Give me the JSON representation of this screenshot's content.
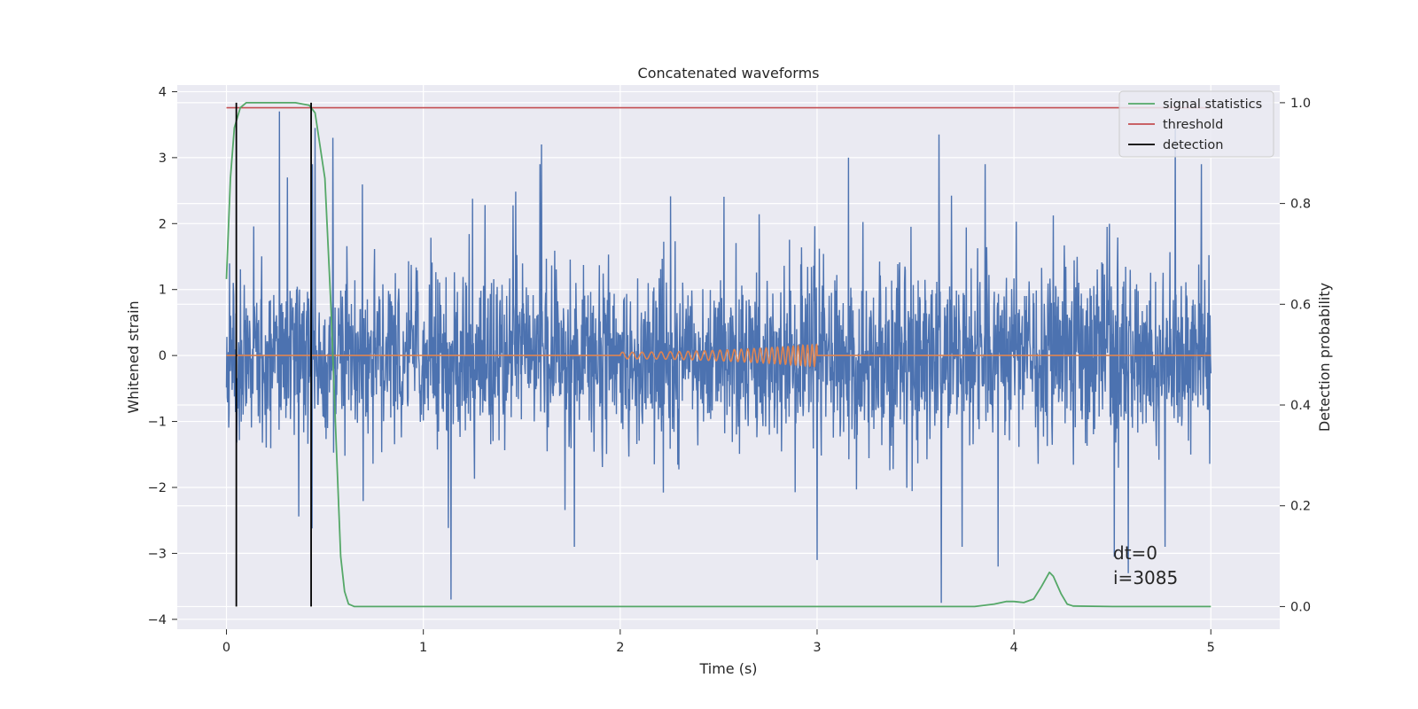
{
  "chart_data": {
    "type": "line",
    "title": "Concatenated waveforms",
    "xlabel": "Time (s)",
    "ylabel": "Whitened strain",
    "y2label": "Detection probability",
    "xlim": [
      -0.25,
      5.35
    ],
    "ylim": [
      -4.15,
      4.1
    ],
    "y2lim": [
      -0.045,
      1.035
    ],
    "xticks": [
      0,
      1,
      2,
      3,
      4,
      5
    ],
    "yticks": [
      -4,
      -3,
      -2,
      -1,
      0,
      1,
      2,
      3,
      4
    ],
    "y2ticks": [
      0.0,
      0.2,
      0.4,
      0.6,
      0.8,
      1.0
    ],
    "y2ticklabels": [
      "0.0",
      "0.2",
      "0.4",
      "0.6",
      "0.8",
      "1.0"
    ],
    "legend_position": "top-right",
    "colors": {
      "strain": "#4c72b0",
      "injection": "#dd8452",
      "signal": "#55a868",
      "threshold": "#c44e52",
      "detection": "#000000",
      "background": "#eaeaf2",
      "grid": "#ffffff"
    },
    "series": [
      {
        "name": "strain",
        "axis": "left",
        "x_range": [
          0,
          5
        ],
        "typical_range": [
          -1.6,
          1.6
        ],
        "spikes": [
          {
            "x": 0.27,
            "y": 3.7
          },
          {
            "x": 0.31,
            "y": 2.7
          },
          {
            "x": 0.45,
            "y": 3.45
          },
          {
            "x": 0.54,
            "y": 3.3
          },
          {
            "x": 1.14,
            "y": -3.7
          },
          {
            "x": 1.6,
            "y": 3.2
          },
          {
            "x": 3.0,
            "y": -3.1
          },
          {
            "x": 3.16,
            "y": 3.0
          },
          {
            "x": 3.62,
            "y": 3.35
          },
          {
            "x": 3.63,
            "y": -3.75
          },
          {
            "x": 3.92,
            "y": -3.2
          },
          {
            "x": 4.51,
            "y": -3.05
          },
          {
            "x": 4.58,
            "y": -3.3
          },
          {
            "x": 4.82,
            "y": 3.45
          }
        ]
      },
      {
        "name": "injection",
        "axis": "left",
        "x_range": [
          2.0,
          3.0
        ],
        "amplitude_start": 0.05,
        "amplitude_end": 0.17,
        "frequency_start_hz": 20,
        "frequency_end_hz": 45
      },
      {
        "name": "signal statistics",
        "axis": "right",
        "x": [
          0,
          0.02,
          0.04,
          0.07,
          0.1,
          0.2,
          0.35,
          0.42,
          0.45,
          0.5,
          0.53,
          0.56,
          0.58,
          0.6,
          0.62,
          0.65,
          1.0,
          2.0,
          3.0,
          3.8,
          3.9,
          3.96,
          4.0,
          4.05,
          4.1,
          4.14,
          4.18,
          4.2,
          4.24,
          4.27,
          4.3,
          4.5,
          5.0
        ],
        "y": [
          0.65,
          0.85,
          0.95,
          0.99,
          1.0,
          1.0,
          1.0,
          0.995,
          0.98,
          0.85,
          0.6,
          0.3,
          0.1,
          0.03,
          0.005,
          0.0,
          0.0,
          0.0,
          0.0,
          0.0,
          0.005,
          0.01,
          0.01,
          0.008,
          0.015,
          0.04,
          0.068,
          0.06,
          0.025,
          0.005,
          0.001,
          0.0,
          0.0
        ]
      },
      {
        "name": "threshold",
        "axis": "right",
        "x": [
          0,
          5
        ],
        "y": [
          0.99,
          0.99
        ]
      },
      {
        "name": "detection",
        "axis": "right",
        "x_positions": [
          0.05,
          0.43
        ],
        "y_range": [
          0,
          1.0
        ]
      }
    ],
    "legend": [
      "signal statistics",
      "threshold",
      "detection"
    ],
    "annotation": {
      "line1": "dt=0",
      "line2": "i=3085",
      "x": 4.5,
      "y": -3.0
    }
  }
}
